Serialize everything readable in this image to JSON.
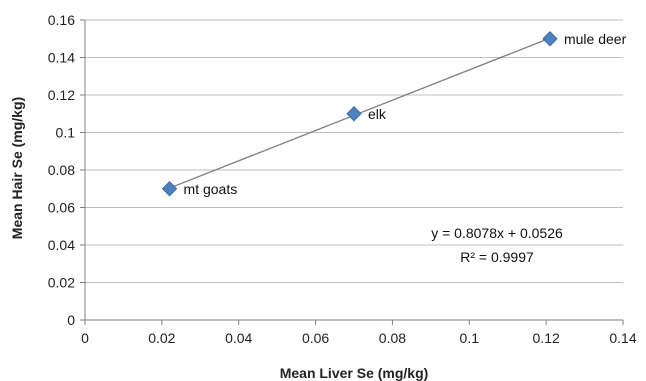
{
  "chart_data": {
    "type": "scatter",
    "xlabel": "Mean Liver Se (mg/kg)",
    "ylabel": "Mean Hair Se (mg/kg)",
    "xlim": [
      0,
      0.14
    ],
    "ylim": [
      0,
      0.16
    ],
    "xticks": [
      "0",
      "0.02",
      "0.04",
      "0.06",
      "0.08",
      "0.1",
      "0.12",
      "0.14"
    ],
    "yticks": [
      "0",
      "0.02",
      "0.04",
      "0.06",
      "0.08",
      "0.1",
      "0.12",
      "0.14",
      "0.16"
    ],
    "grid": "horizontal",
    "marker": "diamond",
    "points": [
      {
        "label": "mt goats",
        "x": 0.022,
        "y": 0.07
      },
      {
        "label": "elk",
        "x": 0.07,
        "y": 0.11
      },
      {
        "label": "mule deer",
        "x": 0.121,
        "y": 0.15
      }
    ],
    "trendline": {
      "slope": 0.8078,
      "intercept": 0.0526,
      "equation": "y = 0.8078x + 0.0526",
      "r_squared": "R² = 0.9997"
    },
    "colors": {
      "marker": "#4f81bd",
      "marker_edge": "#3a6fa8",
      "trendline": "#7f7f7f",
      "grid": "#bfbfbf",
      "axis": "#808080"
    }
  }
}
